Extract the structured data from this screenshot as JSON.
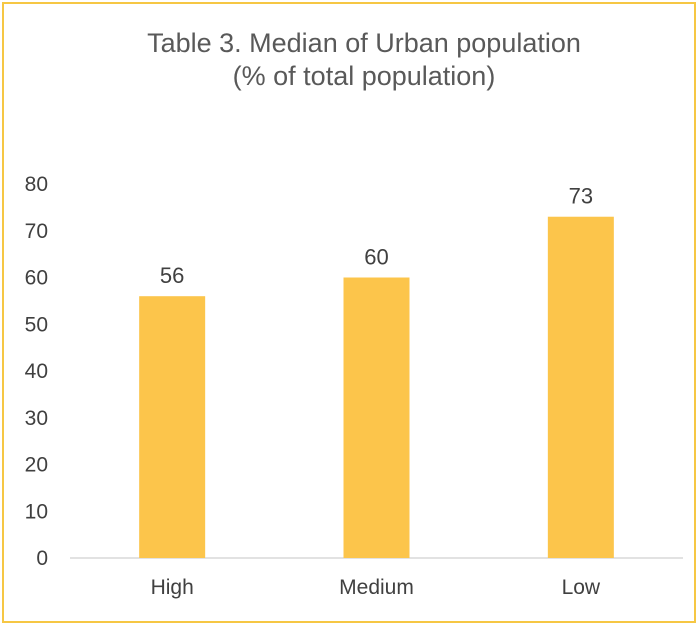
{
  "chart_data": {
    "type": "bar",
    "title_line1": "Table 3. Median of Urban population",
    "title_line2": "(% of total population)",
    "categories": [
      "High",
      "Medium",
      "Low"
    ],
    "values": [
      56,
      60,
      73
    ],
    "data_labels": [
      "56",
      "60",
      "73"
    ],
    "ylim": [
      0,
      80
    ],
    "yticks": [
      "0",
      "10",
      "20",
      "30",
      "40",
      "50",
      "60",
      "70",
      "80"
    ],
    "grid": false,
    "legend": "none",
    "bar_color": "#fcc54b",
    "border_color": "#f6c744",
    "axis_color": "#d9d9d9"
  }
}
